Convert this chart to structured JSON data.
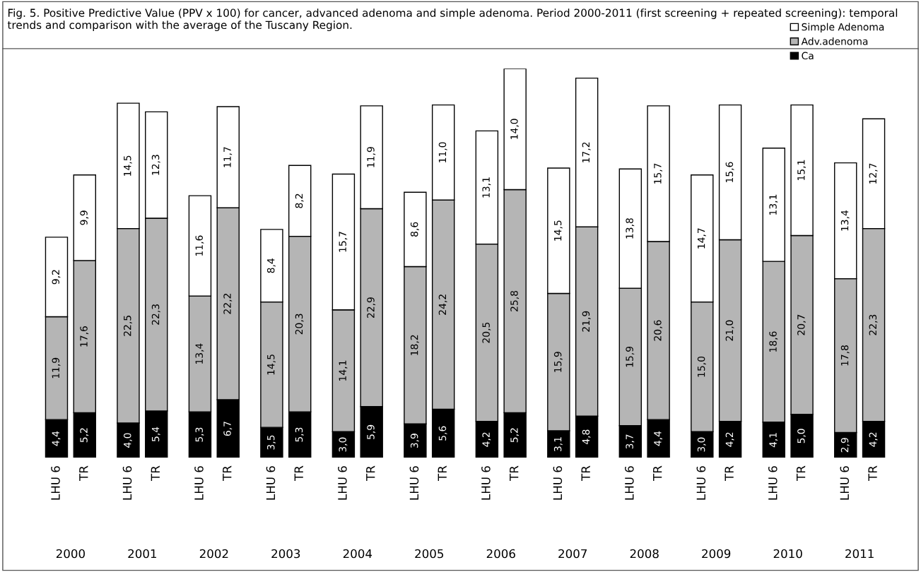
{
  "chart_data": {
    "type": "bar",
    "stacked": true,
    "title": "Fig. 5. Positive Predictive Value (PPV x 100) for cancer, advanced adenoma and simple adenoma. Period 2000-2011 (first screening + repeated screening): temporal trends and comparison with the average of the Tuscany Region.",
    "categories": [
      "LHU 6",
      "TR",
      "LHU 6",
      "TR",
      "LHU 6",
      "TR",
      "LHU 6",
      "TR",
      "LHU 6",
      "TR",
      "LHU 6",
      "TR",
      "LHU 6",
      "TR",
      "LHU 6",
      "TR",
      "LHU 6",
      "TR",
      "LHU 6",
      "TR",
      "LHU 6",
      "TR",
      "LHU 6",
      "TR"
    ],
    "annotations": [
      "2000",
      "2001",
      "2002",
      "2003",
      "2004",
      "2005",
      "2006",
      "2007",
      "2008",
      "2009",
      "2010",
      "2011"
    ],
    "series": [
      {
        "name": "Ca",
        "color": "#000000",
        "values": [
          4.4,
          5.2,
          4.0,
          5.4,
          5.3,
          6.7,
          3.5,
          5.3,
          3.0,
          5.9,
          3.9,
          5.6,
          4.2,
          5.2,
          3.1,
          4.8,
          3.7,
          4.4,
          3.0,
          4.2,
          4.1,
          5.0,
          2.9,
          4.2
        ],
        "value_labels": [
          "4,4",
          "5,2",
          "4,0",
          "5,4",
          "5,3",
          "6,7",
          "3,5",
          "5,3",
          "3,0",
          "5,9",
          "3,9",
          "5,6",
          "4,2",
          "5,2",
          "3,1",
          "4,8",
          "3,7",
          "4,4",
          "3,0",
          "4,2",
          "4,1",
          "5,0",
          "2,9",
          "4,2"
        ]
      },
      {
        "name": "Adv.adenoma",
        "color": "#b5b5b5",
        "values": [
          11.9,
          17.6,
          22.5,
          22.3,
          13.4,
          22.2,
          14.5,
          20.3,
          14.1,
          22.9,
          18.2,
          24.2,
          20.5,
          25.8,
          15.9,
          21.9,
          15.9,
          20.6,
          15.0,
          21.0,
          18.6,
          20.7,
          17.8,
          22.3
        ],
        "value_labels": [
          "11,9",
          "17,6",
          "22,5",
          "22,3",
          "13,4",
          "22,2",
          "14,5",
          "20,3",
          "14,1",
          "22,9",
          "18,2",
          "24,2",
          "20,5",
          "25,8",
          "15,9",
          "21,9",
          "15,9",
          "20,6",
          "15,0",
          "21,0",
          "18,6",
          "20,7",
          "17,8",
          "22,3"
        ]
      },
      {
        "name": "Simple Adenoma",
        "color": "#ffffff",
        "values": [
          9.2,
          9.9,
          14.5,
          12.3,
          11.6,
          11.7,
          8.4,
          8.2,
          15.7,
          11.9,
          8.6,
          11.0,
          13.1,
          14.0,
          14.5,
          17.2,
          13.8,
          15.7,
          14.7,
          15.6,
          13.1,
          15.1,
          13.4,
          12.7
        ],
        "value_labels": [
          "9,2",
          "9,9",
          "14,5",
          "12,3",
          "11,6",
          "11,7",
          "8,4",
          "8,2",
          "15,7",
          "11,9",
          "8,6",
          "11,0",
          "13,1",
          "14,0",
          "14,5",
          "17,2",
          "13,8",
          "15,7",
          "14,7",
          "15,6",
          "13,1",
          "15,1",
          "13,4",
          "12,7"
        ]
      }
    ],
    "legend": "top right"
  }
}
